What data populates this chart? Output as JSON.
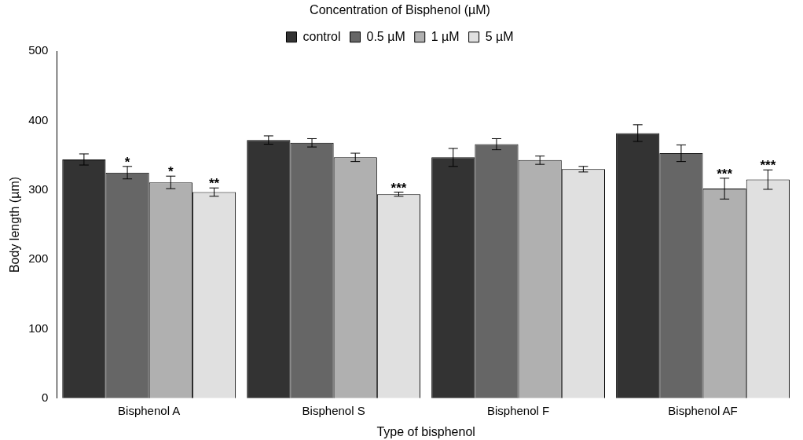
{
  "chart_data": {
    "type": "bar",
    "xlabel": "Type of bisphenol",
    "ylabel": "Body length (µm)",
    "legend_title": "Concentration of Bisphenol (µM)",
    "legend": "top",
    "grid": false,
    "categories": [
      "Bisphenol A",
      "Bisphenol S",
      "Bisphenol F",
      "Bisphenol AF"
    ],
    "ylim": [
      0,
      500
    ],
    "yticks": [
      0,
      100,
      200,
      300,
      400,
      500
    ],
    "series": [
      {
        "name": "control",
        "color": "#333333",
        "values": [
          344,
          372,
          347,
          382
        ],
        "errors": [
          8,
          6,
          13,
          12
        ]
      },
      {
        "name": "0.5 µM",
        "color": "#666666",
        "values": [
          325,
          368,
          366,
          353
        ],
        "errors": [
          9,
          6,
          8,
          12
        ],
        "value_labels": [
          "*",
          null,
          null,
          null
        ]
      },
      {
        "name": "1 µM",
        "color": "#b0b0b0",
        "values": [
          311,
          347,
          343,
          302
        ],
        "errors": [
          9,
          6,
          6,
          15
        ],
        "value_labels": [
          "*",
          null,
          null,
          "***"
        ]
      },
      {
        "name": "5 µM",
        "color": "#e0e0e0",
        "values": [
          297,
          294,
          330,
          315
        ],
        "errors": [
          6,
          3,
          4,
          14
        ],
        "value_labels": [
          "**",
          "***",
          null,
          "***"
        ]
      }
    ]
  }
}
